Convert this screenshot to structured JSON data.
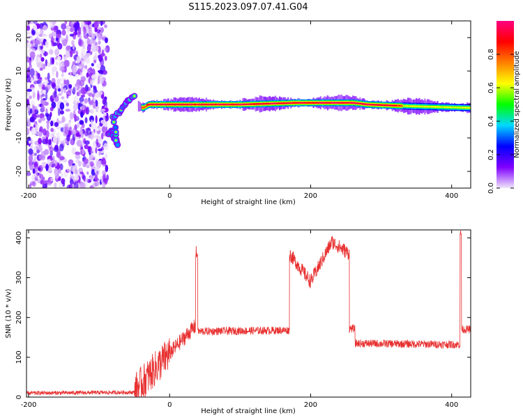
{
  "title": "S115.2023.097.07.41.G04",
  "chart_data": [
    {
      "type": "heatmap",
      "xlabel": "Height of straight line (km)",
      "ylabel": "Frequency (Hz)",
      "xlim": [
        -203,
        427
      ],
      "ylim": [
        -25,
        25
      ],
      "x_ticks": [
        -200,
        0,
        200,
        400
      ],
      "y_ticks": [
        -20,
        -10,
        0,
        10,
        20
      ],
      "colorbar": {
        "label": "Normalized spectral amplitude",
        "range": [
          0,
          1
        ],
        "ticks": [
          "0.0",
          "0.2",
          "0.4",
          "0.6",
          "0.8"
        ],
        "colors": [
          "#f0e6fa",
          "#8000ff",
          "#0000ff",
          "#00d8ff",
          "#00ff00",
          "#ffff00",
          "#ff8000",
          "#ff0000",
          "#ff0080"
        ]
      },
      "noise_region_x": [
        -203,
        -88
      ],
      "ridge": [
        {
          "x": -88,
          "f": -9
        },
        {
          "x": -82,
          "f": -8
        },
        {
          "x": -78,
          "f": -10
        },
        {
          "x": -74,
          "f": -12
        },
        {
          "x": -80,
          "f": -4
        },
        {
          "x": -70,
          "f": -2
        },
        {
          "x": -60,
          "f": 1
        },
        {
          "x": -50,
          "f": 2.5
        },
        {
          "x": -45,
          "f": -0.5
        },
        {
          "x": -38,
          "f": -1
        },
        {
          "x": -30,
          "f": 0
        },
        {
          "x": 0,
          "f": 0
        },
        {
          "x": 100,
          "f": 0
        },
        {
          "x": 180,
          "f": 0.5
        },
        {
          "x": 260,
          "f": 0.5
        },
        {
          "x": 280,
          "f": 0
        },
        {
          "x": 340,
          "f": -0.5
        },
        {
          "x": 427,
          "f": -1
        }
      ]
    },
    {
      "type": "line",
      "xlabel": "Height of straight line (km)",
      "ylabel": "SNR (10 * v/v)",
      "xlim": [
        -203,
        427
      ],
      "ylim": [
        0,
        420
      ],
      "x_ticks": [
        -200,
        0,
        200,
        400
      ],
      "y_ticks": [
        0,
        100,
        200,
        300,
        400
      ],
      "color": "#e83030",
      "segments": [
        {
          "x": [
            -203,
            -50
          ],
          "level": [
            10,
            12
          ],
          "noise": 5
        },
        {
          "x": [
            -50,
            0
          ],
          "level": [
            15,
            110
          ],
          "noise": 45
        },
        {
          "x": [
            0,
            37
          ],
          "level": [
            110,
            180
          ],
          "noise": 20
        },
        {
          "x": [
            37,
            40
          ],
          "level": [
            360,
            360
          ],
          "noise": 20
        },
        {
          "x": [
            40,
            170
          ],
          "level": [
            165,
            168
          ],
          "noise": 10
        },
        {
          "x": [
            170,
            200
          ],
          "level": [
            360,
            290
          ],
          "noise": 18
        },
        {
          "x": [
            200,
            230
          ],
          "level": [
            290,
            390
          ],
          "noise": 18
        },
        {
          "x": [
            230,
            255
          ],
          "level": [
            390,
            360
          ],
          "noise": 18
        },
        {
          "x": [
            255,
            263
          ],
          "level": [
            172,
            172
          ],
          "noise": 10
        },
        {
          "x": [
            263,
            412
          ],
          "level": [
            135,
            132
          ],
          "noise": 10
        },
        {
          "x": [
            412,
            414
          ],
          "level": [
            410,
            410
          ],
          "noise": 10
        },
        {
          "x": [
            414,
            427
          ],
          "level": [
            170,
            170
          ],
          "noise": 10
        }
      ]
    }
  ]
}
